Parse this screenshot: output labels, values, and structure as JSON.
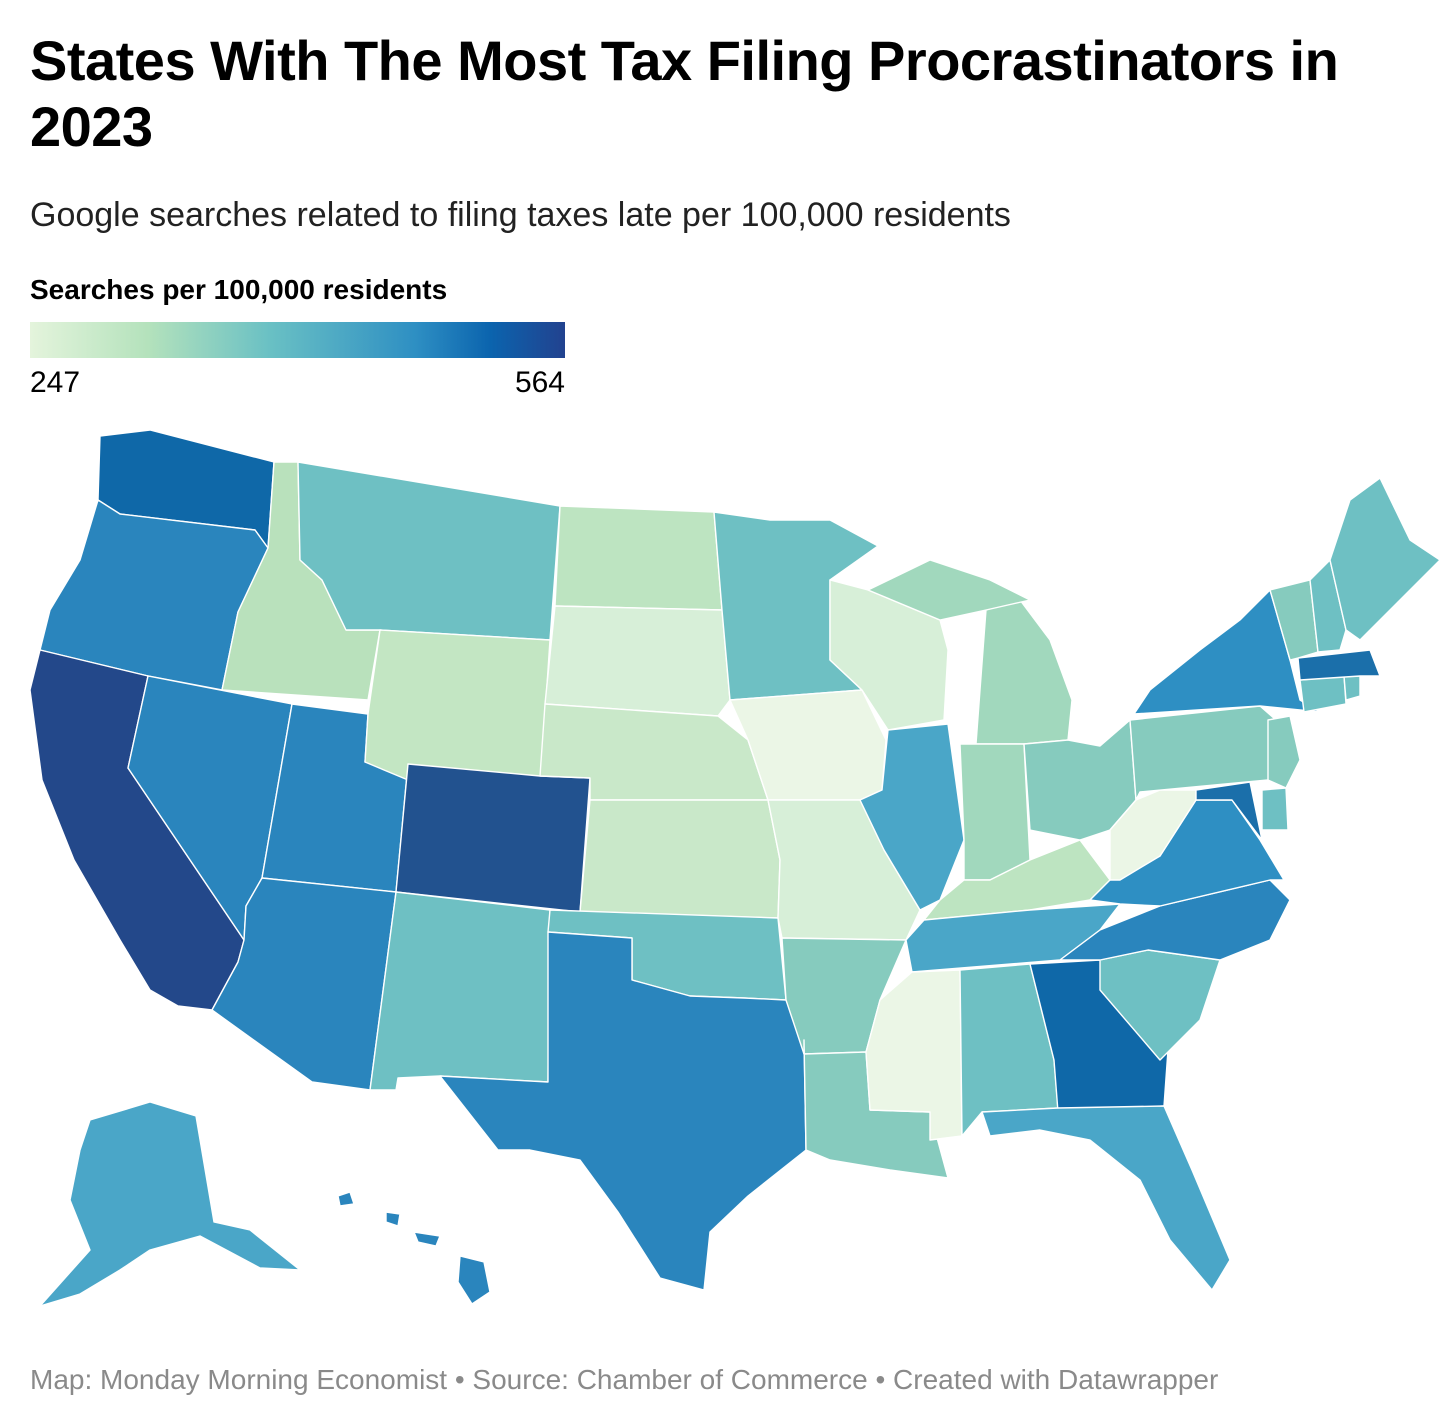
{
  "title": "States With The Most Tax Filing Procrastinators in 2023",
  "subtitle": "Google searches related to filing taxes late per 100,000 residents",
  "legend": {
    "title": "Searches per 100,000 residents",
    "min_label": "247",
    "max_label": "564",
    "gradient": [
      "#e4f4dc",
      "#b4e2bc",
      "#69c0c4",
      "#2e8fc3",
      "#0b64ae",
      "#22428f"
    ]
  },
  "map": {
    "type": "choropleth",
    "region": "United States",
    "state_colors": {
      "Washington": "#0f68a8",
      "Oregon": "#2a85bd",
      "California": "#23488a",
      "Idaho": "#b9e1bc",
      "Nevada": "#2a85bd",
      "Utah": "#2a85bd",
      "Arizona": "#2a85bd",
      "Montana": "#6ec0c3",
      "Wyoming": "#c3e6c3",
      "Colorado": "#22528f",
      "New Mexico": "#6ec0c3",
      "North Dakota": "#bde4c1",
      "South Dakota": "#d7efd8",
      "Nebraska": "#c9e8c9",
      "Kansas": "#c9e8c9",
      "Oklahoma": "#6ec0c3",
      "Texas": "#2a85bd",
      "Minnesota": "#6ec0c3",
      "Iowa": "#ebf6e6",
      "Missouri": "#d7efd8",
      "Arkansas": "#86cbbe",
      "Louisiana": "#86cbbe",
      "Wisconsin": "#d7efd8",
      "Illinois": "#4aa6c8",
      "Michigan": "#a1d8bd",
      "Indiana": "#a1d8bd",
      "Ohio": "#86cbbe",
      "Kentucky": "#bde4c1",
      "Tennessee": "#4aa6c8",
      "Mississippi": "#ebf6e6",
      "Alabama": "#6ec0c3",
      "Georgia": "#0f68a8",
      "Florida": "#4aa6c8",
      "South Carolina": "#6ec0c3",
      "North Carolina": "#2a85bd",
      "Virginia": "#2e8fc3",
      "West Virginia": "#ebf6e6",
      "Pennsylvania": "#86cbbe",
      "New York": "#2e8fc3",
      "Vermont": "#86cbbe",
      "New Hampshire": "#6ec0c3",
      "Maine": "#6ec0c3",
      "Massachusetts": "#1b6faa",
      "Connecticut": "#6ec0c3",
      "Rhode Island": "#6ec0c3",
      "New Jersey": "#86cbbe",
      "Delaware": "#6ec0c3",
      "Maryland": "#1b6faa",
      "Alaska": "#4aa6c8",
      "Hawaii": "#2a85bd"
    }
  },
  "footer": "Map: Monday Morning Economist • Source: Chamber of Commerce • Created with Datawrapper"
}
